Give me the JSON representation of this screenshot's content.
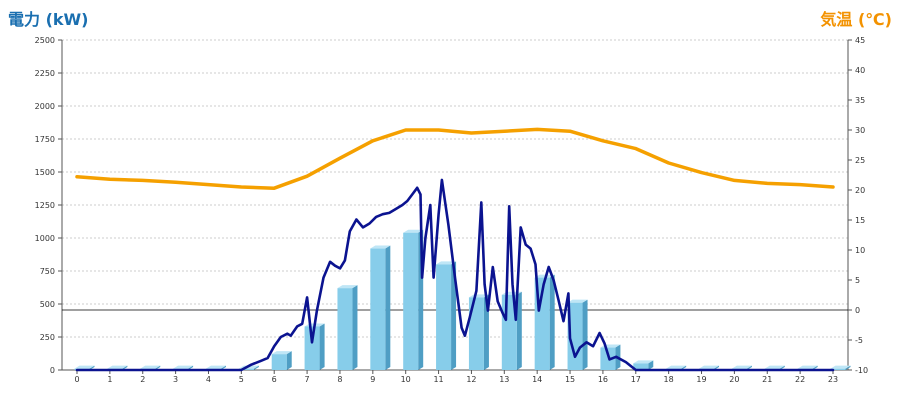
{
  "colors": {
    "power_title": "#1a6fb0",
    "temp_title": "#f39200",
    "bar_front": "#87cdea",
    "bar_side": "#4f9ec4",
    "bar_top": "#bfe6f6",
    "power_line": "#0b1390",
    "temp_line": "#f5a000",
    "zero_line": "#000000"
  },
  "chart_data": {
    "type": "bar+line",
    "left_title": "電力 (kW)",
    "right_title": "気温 (℃)",
    "x_ticks": [
      "0",
      "1",
      "2",
      "3",
      "4",
      "5",
      "6",
      "7",
      "8",
      "9",
      "10",
      "11",
      "12",
      "13",
      "14",
      "15",
      "16",
      "17",
      "18",
      "19",
      "20",
      "21",
      "22",
      "23"
    ],
    "y_left": {
      "range": [
        0,
        2500
      ],
      "ticks": [
        "0",
        "250",
        "500",
        "750",
        "1000",
        "1250",
        "1500",
        "1750",
        "2000",
        "2250",
        "2500"
      ]
    },
    "y_right": {
      "range": [
        -10,
        45
      ],
      "ticks": [
        "-10",
        "-5",
        "0",
        "5",
        "10",
        "15",
        "20",
        "25",
        "30",
        "35",
        "40",
        "45"
      ]
    },
    "grid": "horizontal dashed",
    "series": [
      {
        "kind": "bar",
        "axis": "left",
        "x": [
          0,
          1,
          2,
          3,
          4,
          5,
          6,
          7,
          8,
          9,
          10,
          11,
          12,
          13,
          14,
          15,
          16,
          17,
          18,
          19,
          20,
          21,
          22,
          23
        ],
        "values": [
          10,
          10,
          10,
          10,
          10,
          10,
          120,
          330,
          620,
          920,
          1040,
          800,
          550,
          570,
          700,
          510,
          170,
          50,
          10,
          10,
          10,
          10,
          10,
          10
        ]
      },
      {
        "kind": "line",
        "axis": "left",
        "points": [
          [
            0,
            0
          ],
          [
            1,
            0
          ],
          [
            2,
            0
          ],
          [
            3,
            0
          ],
          [
            4,
            0
          ],
          [
            5,
            0
          ],
          [
            5.3,
            40
          ],
          [
            5.6,
            70
          ],
          [
            5.8,
            90
          ],
          [
            6.0,
            180
          ],
          [
            6.2,
            250
          ],
          [
            6.4,
            275
          ],
          [
            6.5,
            260
          ],
          [
            6.7,
            330
          ],
          [
            6.85,
            350
          ],
          [
            7.0,
            550
          ],
          [
            7.15,
            210
          ],
          [
            7.3,
            450
          ],
          [
            7.5,
            700
          ],
          [
            7.7,
            820
          ],
          [
            7.85,
            790
          ],
          [
            8.0,
            770
          ],
          [
            8.15,
            830
          ],
          [
            8.3,
            1050
          ],
          [
            8.5,
            1140
          ],
          [
            8.7,
            1080
          ],
          [
            8.9,
            1110
          ],
          [
            9.1,
            1160
          ],
          [
            9.3,
            1180
          ],
          [
            9.5,
            1190
          ],
          [
            9.7,
            1220
          ],
          [
            9.9,
            1250
          ],
          [
            10.05,
            1280
          ],
          [
            10.2,
            1330
          ],
          [
            10.35,
            1380
          ],
          [
            10.45,
            1330
          ],
          [
            10.5,
            700
          ],
          [
            10.6,
            1000
          ],
          [
            10.75,
            1250
          ],
          [
            10.85,
            700
          ],
          [
            11.0,
            1180
          ],
          [
            11.1,
            1440
          ],
          [
            11.3,
            1100
          ],
          [
            11.5,
            700
          ],
          [
            11.7,
            320
          ],
          [
            11.8,
            260
          ],
          [
            11.95,
            400
          ],
          [
            12.15,
            600
          ],
          [
            12.3,
            1270
          ],
          [
            12.4,
            650
          ],
          [
            12.5,
            450
          ],
          [
            12.65,
            780
          ],
          [
            12.8,
            520
          ],
          [
            12.95,
            430
          ],
          [
            13.05,
            380
          ],
          [
            13.15,
            1240
          ],
          [
            13.25,
            650
          ],
          [
            13.35,
            380
          ],
          [
            13.5,
            1080
          ],
          [
            13.65,
            950
          ],
          [
            13.8,
            920
          ],
          [
            13.95,
            800
          ],
          [
            14.05,
            450
          ],
          [
            14.2,
            650
          ],
          [
            14.35,
            780
          ],
          [
            14.5,
            680
          ],
          [
            14.65,
            530
          ],
          [
            14.8,
            370
          ],
          [
            14.95,
            580
          ],
          [
            15.0,
            240
          ],
          [
            15.15,
            100
          ],
          [
            15.3,
            170
          ],
          [
            15.5,
            210
          ],
          [
            15.7,
            180
          ],
          [
            15.9,
            280
          ],
          [
            16.05,
            200
          ],
          [
            16.2,
            80
          ],
          [
            16.4,
            100
          ],
          [
            16.7,
            60
          ],
          [
            17.0,
            0
          ],
          [
            18,
            0
          ],
          [
            19,
            0
          ],
          [
            20,
            0
          ],
          [
            21,
            0
          ],
          [
            22,
            0
          ],
          [
            23,
            0
          ]
        ]
      },
      {
        "kind": "line",
        "axis": "right",
        "points": [
          [
            0,
            22.2
          ],
          [
            1,
            21.8
          ],
          [
            2,
            21.6
          ],
          [
            3,
            21.3
          ],
          [
            4,
            20.9
          ],
          [
            5,
            20.5
          ],
          [
            6,
            20.3
          ],
          [
            7,
            22.3
          ],
          [
            8,
            25.3
          ],
          [
            9,
            28.2
          ],
          [
            10,
            30.0
          ],
          [
            11,
            30.0
          ],
          [
            12,
            29.5
          ],
          [
            13,
            29.8
          ],
          [
            14,
            30.1
          ],
          [
            15,
            29.8
          ],
          [
            16,
            28.2
          ],
          [
            17,
            26.9
          ],
          [
            18,
            24.5
          ],
          [
            19,
            22.9
          ],
          [
            20,
            21.6
          ],
          [
            21,
            21.1
          ],
          [
            22,
            20.9
          ],
          [
            23,
            20.5
          ]
        ]
      }
    ]
  }
}
